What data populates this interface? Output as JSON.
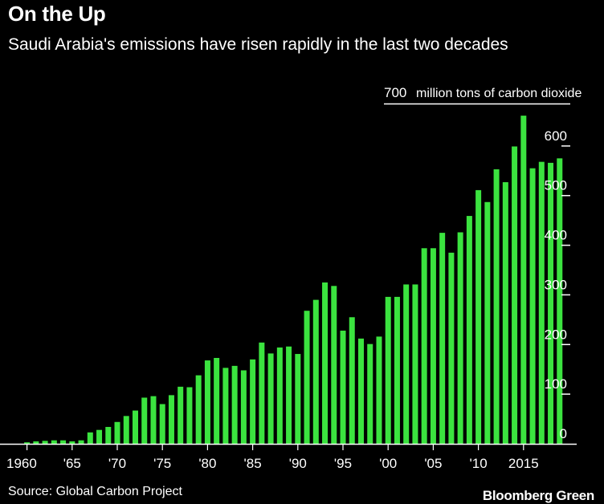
{
  "chart_data": {
    "type": "bar",
    "title": "On the Up",
    "subtitle": "Saudi Arabia's emissions have risen rapidly in the last two decades",
    "unit_label": "million tons of carbon dioxide",
    "source": "Source: Global Carbon Project",
    "brand": "Bloomberg Green",
    "color": "#3be33f",
    "ylim": [
      0,
      700
    ],
    "yticks": [
      "0",
      "100",
      "200",
      "300",
      "400",
      "500",
      "600",
      "700"
    ],
    "xtick_labels": [
      {
        "year": 1960,
        "label": "1960"
      },
      {
        "year": 1965,
        "label": "'65"
      },
      {
        "year": 1970,
        "label": "'70"
      },
      {
        "year": 1975,
        "label": "'75"
      },
      {
        "year": 1980,
        "label": "'80"
      },
      {
        "year": 1985,
        "label": "'85"
      },
      {
        "year": 1990,
        "label": "'90"
      },
      {
        "year": 1995,
        "label": "'95"
      },
      {
        "year": 2000,
        "label": "'00"
      },
      {
        "year": 2005,
        "label": "'05"
      },
      {
        "year": 2010,
        "label": "'10"
      },
      {
        "year": 2015,
        "label": "2015"
      }
    ],
    "x": [
      1960,
      1961,
      1962,
      1963,
      1964,
      1965,
      1966,
      1967,
      1968,
      1969,
      1970,
      1971,
      1972,
      1973,
      1974,
      1975,
      1976,
      1977,
      1978,
      1979,
      1980,
      1981,
      1982,
      1983,
      1984,
      1985,
      1986,
      1987,
      1988,
      1989,
      1990,
      1991,
      1992,
      1993,
      1994,
      1995,
      1996,
      1997,
      1998,
      1999,
      2000,
      2001,
      2002,
      2003,
      2004,
      2005,
      2006,
      2007,
      2008,
      2009,
      2010,
      2011,
      2012,
      2013,
      2014,
      2015,
      2016,
      2017,
      2018,
      2019
    ],
    "values": [
      3,
      5,
      6,
      7,
      7,
      5,
      7,
      23,
      28,
      34,
      44,
      56,
      67,
      93,
      96,
      80,
      98,
      115,
      114,
      138,
      168,
      173,
      153,
      157,
      148,
      170,
      204,
      182,
      194,
      196,
      181,
      268,
      290,
      325,
      318,
      228,
      255,
      212,
      201,
      216,
      296,
      296,
      321,
      321,
      394,
      394,
      425,
      385,
      426,
      459,
      511,
      487,
      553,
      527,
      599,
      661,
      555,
      568,
      566,
      575
    ]
  }
}
